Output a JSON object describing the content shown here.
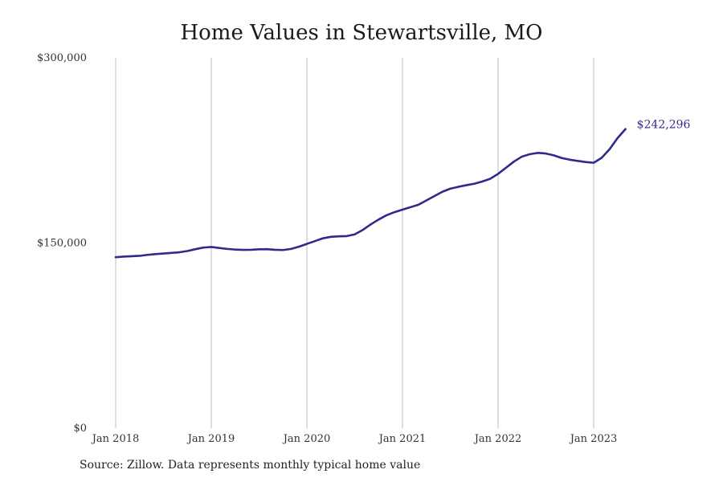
{
  "chart_data": {
    "type": "line",
    "title": "Home Values in Stewartsville, MO",
    "xlabel": "",
    "ylabel": "",
    "ylim": [
      0,
      300000
    ],
    "y_ticks": [
      {
        "value": 0,
        "label": "$0"
      },
      {
        "value": 150000,
        "label": "$150,000"
      },
      {
        "value": 300000,
        "label": "$300,000"
      }
    ],
    "x_ticks": [
      {
        "value": "2018-01",
        "label": "Jan 2018"
      },
      {
        "value": "2019-01",
        "label": "Jan 2019"
      },
      {
        "value": "2020-01",
        "label": "Jan 2020"
      },
      {
        "value": "2021-01",
        "label": "Jan 2021"
      },
      {
        "value": "2022-01",
        "label": "Jan 2022"
      },
      {
        "value": "2023-01",
        "label": "Jan 2023"
      }
    ],
    "grid": "vertical",
    "series": [
      {
        "color": "#2e2b8c",
        "end_label": "$242,296",
        "x": [
          "2018-01",
          "2018-02",
          "2018-03",
          "2018-04",
          "2018-05",
          "2018-06",
          "2018-07",
          "2018-08",
          "2018-09",
          "2018-10",
          "2018-11",
          "2018-12",
          "2019-01",
          "2019-02",
          "2019-03",
          "2019-04",
          "2019-05",
          "2019-06",
          "2019-07",
          "2019-08",
          "2019-09",
          "2019-10",
          "2019-11",
          "2019-12",
          "2020-01",
          "2020-02",
          "2020-03",
          "2020-04",
          "2020-05",
          "2020-06",
          "2020-07",
          "2020-08",
          "2020-09",
          "2020-10",
          "2020-11",
          "2020-12",
          "2021-01",
          "2021-02",
          "2021-03",
          "2021-04",
          "2021-05",
          "2021-06",
          "2021-07",
          "2021-08",
          "2021-09",
          "2021-10",
          "2021-11",
          "2021-12",
          "2022-01",
          "2022-02",
          "2022-03",
          "2022-04",
          "2022-05",
          "2022-06",
          "2022-07",
          "2022-08",
          "2022-09",
          "2022-10",
          "2022-11",
          "2022-12",
          "2023-01",
          "2023-02",
          "2023-03",
          "2023-04",
          "2023-05"
        ],
        "values": [
          138500,
          139000,
          139300,
          139600,
          140400,
          141000,
          141500,
          142000,
          142500,
          143500,
          145000,
          146300,
          146800,
          146000,
          145200,
          144700,
          144400,
          144500,
          144900,
          145000,
          144500,
          144300,
          145200,
          147000,
          149300,
          151500,
          153800,
          155000,
          155400,
          155600,
          157000,
          160500,
          165000,
          169000,
          172500,
          175000,
          177000,
          179000,
          181000,
          184500,
          188000,
          191500,
          194000,
          195500,
          196800,
          198000,
          199800,
          202000,
          206000,
          211000,
          216000,
          220000,
          222000,
          223000,
          222500,
          221000,
          218800,
          217500,
          216500,
          215600,
          215000,
          219000,
          226000,
          235000,
          242296
        ]
      }
    ]
  },
  "source_note": "Source: Zillow. Data represents monthly typical home value"
}
